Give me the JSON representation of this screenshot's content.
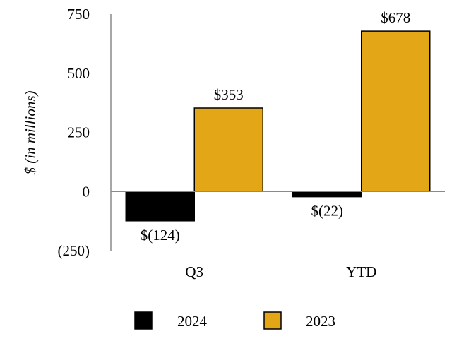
{
  "chart_data": {
    "type": "bar",
    "title": "",
    "xlabel": "",
    "ylabel": "$ (in millions)",
    "categories": [
      "Q3",
      "YTD"
    ],
    "series": [
      {
        "name": "2024",
        "values": [
          -124,
          -22
        ],
        "labels": [
          "$(124)",
          "$(22)"
        ],
        "color": "#000000"
      },
      {
        "name": "2023",
        "values": [
          353,
          678
        ],
        "labels": [
          "$353",
          "$678"
        ],
        "color": "#E3A617"
      }
    ],
    "ylim": [
      -250,
      750
    ],
    "yticks": [
      {
        "value": 750,
        "label": "750"
      },
      {
        "value": 500,
        "label": "500"
      },
      {
        "value": 250,
        "label": "250"
      },
      {
        "value": 0,
        "label": "0"
      },
      {
        "value": -250,
        "label": "(250)"
      }
    ],
    "grid": false,
    "legend_position": "bottom"
  }
}
